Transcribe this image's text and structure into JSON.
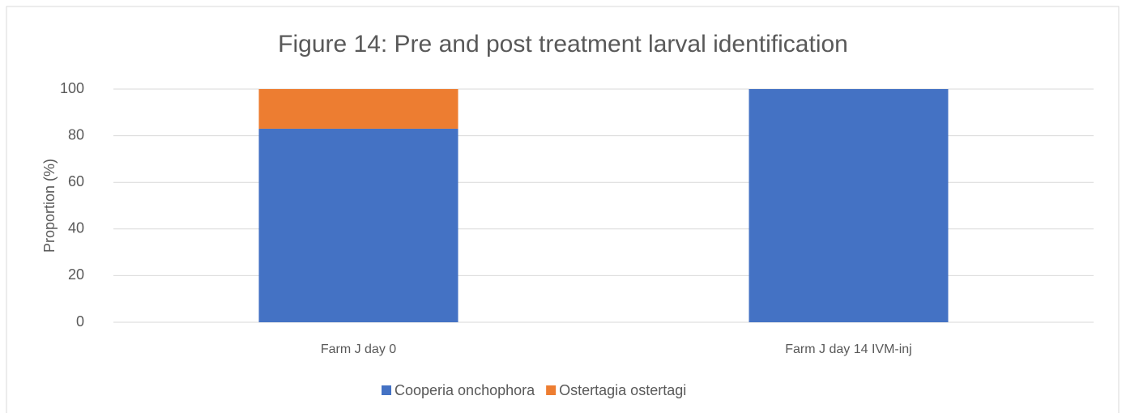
{
  "chart_data": {
    "type": "stacked-bar",
    "title": "Figure 14: Pre and post treatment larval identification",
    "y_label": "Proportion (%)",
    "categories": [
      "Farm J day 0",
      "Farm J day 14 IVM-inj"
    ],
    "series": [
      {
        "name": "Cooperia onchophora",
        "color": "#4472c4",
        "values": [
          83,
          100
        ]
      },
      {
        "name": "Ostertagia ostertagi",
        "color": "#ed7d31",
        "values": [
          17,
          0
        ]
      }
    ],
    "ylim": [
      0,
      100
    ],
    "yticks": [
      0,
      20,
      40,
      60,
      80,
      100
    ],
    "grid": true,
    "legend": "bottom"
  }
}
